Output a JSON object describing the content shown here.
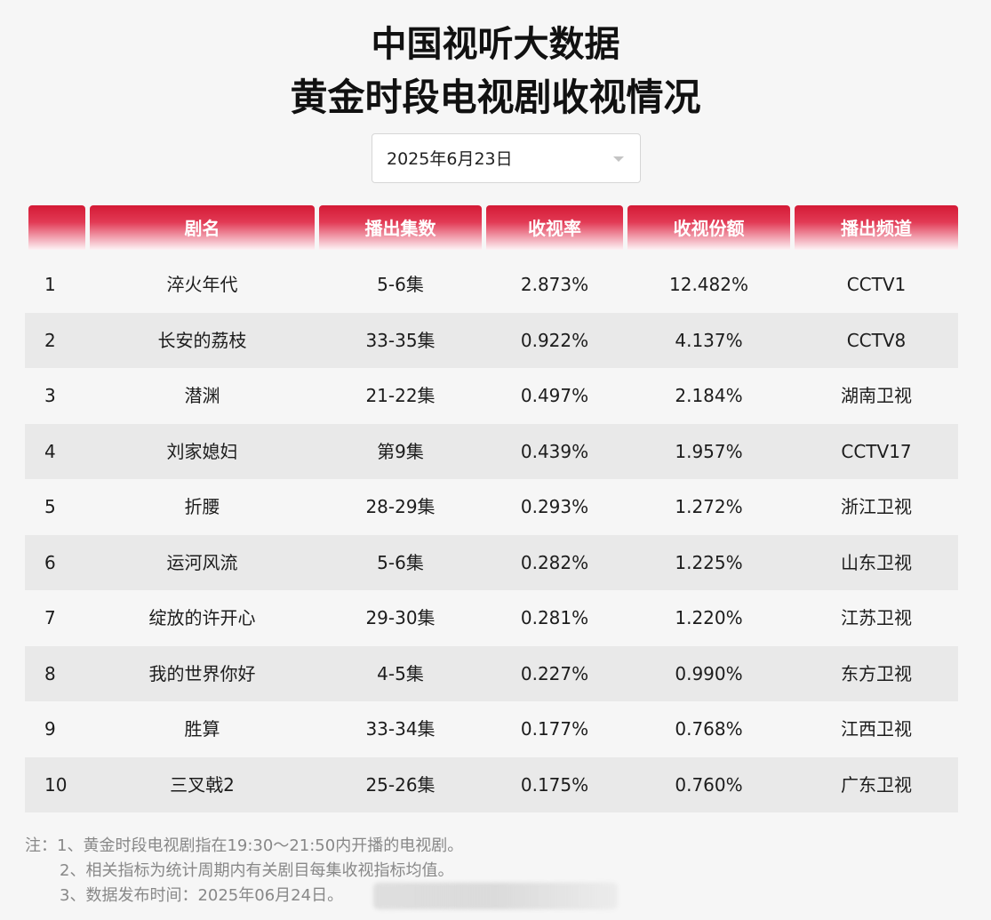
{
  "header": {
    "title_line1": "中国视听大数据",
    "title_line2": "黄金时段电视剧收视情况"
  },
  "date_select": {
    "value": "2025年6月23日",
    "icon": "chevron-down-icon"
  },
  "table": {
    "columns": [
      "",
      "剧名",
      "播出集数",
      "收视率",
      "收视份额",
      "播出频道"
    ],
    "rows": [
      {
        "rank": "1",
        "name": "淬火年代",
        "episodes": "5-6集",
        "rating": "2.873%",
        "share": "12.482%",
        "channel": "CCTV1"
      },
      {
        "rank": "2",
        "name": "长安的荔枝",
        "episodes": "33-35集",
        "rating": "0.922%",
        "share": "4.137%",
        "channel": "CCTV8"
      },
      {
        "rank": "3",
        "name": "潜渊",
        "episodes": "21-22集",
        "rating": "0.497%",
        "share": "2.184%",
        "channel": "湖南卫视"
      },
      {
        "rank": "4",
        "name": "刘家媳妇",
        "episodes": "第9集",
        "rating": "0.439%",
        "share": "1.957%",
        "channel": "CCTV17"
      },
      {
        "rank": "5",
        "name": "折腰",
        "episodes": "28-29集",
        "rating": "0.293%",
        "share": "1.272%",
        "channel": "浙江卫视"
      },
      {
        "rank": "6",
        "name": "运河风流",
        "episodes": "5-6集",
        "rating": "0.282%",
        "share": "1.225%",
        "channel": "山东卫视"
      },
      {
        "rank": "7",
        "name": "绽放的许开心",
        "episodes": "29-30集",
        "rating": "0.281%",
        "share": "1.220%",
        "channel": "江苏卫视"
      },
      {
        "rank": "8",
        "name": "我的世界你好",
        "episodes": "4-5集",
        "rating": "0.227%",
        "share": "0.990%",
        "channel": "东方卫视"
      },
      {
        "rank": "9",
        "name": "胜算",
        "episodes": "33-34集",
        "rating": "0.177%",
        "share": "0.768%",
        "channel": "江西卫视"
      },
      {
        "rank": "10",
        "name": "三叉戟2",
        "episodes": "25-26集",
        "rating": "0.175%",
        "share": "0.760%",
        "channel": "广东卫视"
      }
    ]
  },
  "notes": {
    "line1": "注：1、黄金时段电视剧指在19:30～21:50内开播的电视剧。",
    "line2": "2、相关指标为统计周期内有关剧目每集收视指标均值。",
    "line3": "3、数据发布时间：2025年06月24日。"
  },
  "colors": {
    "header_red": "#d41a35",
    "stripe": "#e9e9e9",
    "background": "#f6f6f6"
  }
}
